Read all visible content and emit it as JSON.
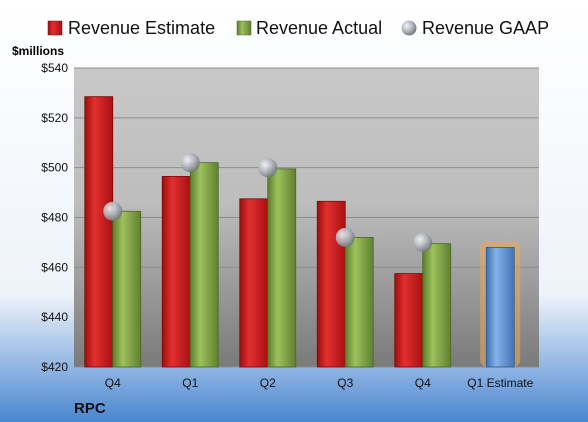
{
  "chart_data": {
    "type": "bar",
    "unit_label": "$millions",
    "company": "RPC",
    "categories": [
      "Q4",
      "Q1",
      "Q2",
      "Q3",
      "Q4",
      "Q1 Estimate"
    ],
    "series": [
      {
        "name": "Revenue Estimate",
        "color": "#d42020",
        "values": [
          528.5,
          496.5,
          487.5,
          486.5,
          457.5,
          null
        ]
      },
      {
        "name": "Revenue Actual",
        "color": "#8db04e",
        "values": [
          482.5,
          502.0,
          499.5,
          472.0,
          469.5,
          null
        ]
      },
      {
        "name": "Revenue GAAP",
        "color": "#b0b4bc",
        "values": [
          482.5,
          502.0,
          500.0,
          472.0,
          470.0,
          null
        ]
      }
    ],
    "estimate_bar": {
      "category": "Q1 Estimate",
      "value": 468.0,
      "color": "#6f9fd8",
      "glow": "#f0a850"
    },
    "y_ticks": [
      "$420",
      "$440",
      "$460",
      "$480",
      "$500",
      "$520",
      "$540"
    ],
    "ylim": [
      420,
      540
    ],
    "legend_position": "top",
    "grid": true
  }
}
